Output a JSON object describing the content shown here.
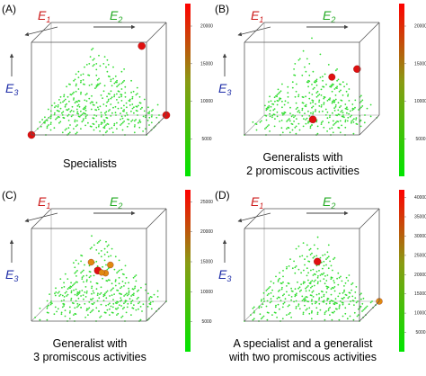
{
  "chart_data": [
    {
      "type": "scatter",
      "panel_label": "(A)",
      "caption_lines": [
        "Specialists"
      ],
      "axis_labels": {
        "e1": "E",
        "e1_sub": "1",
        "e2": "E",
        "e2_sub": "2",
        "e3": "E",
        "e3_sub": "3"
      },
      "colorbar": {
        "ticks": [
          5000,
          10000,
          15000,
          20000
        ],
        "range": [
          0,
          23000
        ],
        "colors": [
          "#00e600",
          "#ff0000"
        ]
      },
      "highlighted_points": [
        {
          "E1": 0.05,
          "E2": 0.95,
          "E3": 0.95,
          "value": 22000
        },
        {
          "E1": 0.0,
          "E2": 0.0,
          "E3": 0.0,
          "value": 22000
        },
        {
          "E1": 1.0,
          "E2": 1.0,
          "E3": 0.0,
          "value": 22000
        }
      ]
    },
    {
      "type": "scatter",
      "panel_label": "(B)",
      "caption_lines": [
        "Generalists with",
        "2 promiscous activities"
      ],
      "axis_labels": {
        "e1": "E",
        "e1_sub": "1",
        "e2": "E",
        "e2_sub": "2",
        "e3": "E",
        "e3_sub": "3"
      },
      "colorbar": {
        "ticks": [
          5000,
          10000,
          15000,
          20000
        ],
        "range": [
          0,
          23000
        ],
        "colors": [
          "#00e600",
          "#ff0000"
        ]
      },
      "highlighted_points": [
        {
          "E1": 0.35,
          "E2": 0.7,
          "E3": 0.55,
          "value": 18000
        },
        {
          "E1": 0.75,
          "E2": 0.85,
          "E3": 0.55,
          "value": 20000
        },
        {
          "E1": 0.55,
          "E2": 0.5,
          "E3": 0.05,
          "value": 22000
        }
      ]
    },
    {
      "type": "scatter",
      "panel_label": "(C)",
      "caption_lines": [
        "Generalist with",
        "3 promiscous activities"
      ],
      "axis_labels": {
        "e1": "E",
        "e1_sub": "1",
        "e2": "E",
        "e2_sub": "2",
        "e3": "E",
        "e3_sub": "3"
      },
      "colorbar": {
        "ticks": [
          5000,
          10000,
          15000,
          20000,
          25000
        ],
        "range": [
          0,
          27000
        ],
        "colors": [
          "#00e600",
          "#ff0000"
        ]
      },
      "highlighted_points": [
        {
          "E1": 0.45,
          "E2": 0.5,
          "E3": 0.45,
          "value": 26000
        },
        {
          "E1": 0.5,
          "E2": 0.6,
          "E3": 0.5,
          "value": 17000
        },
        {
          "E1": 0.4,
          "E2": 0.45,
          "E3": 0.55,
          "value": 16000
        },
        {
          "E1": 0.55,
          "E2": 0.55,
          "E3": 0.4,
          "value": 15000
        },
        {
          "E1": 0.35,
          "E2": 0.55,
          "E3": 0.45,
          "value": 14000
        }
      ]
    },
    {
      "type": "scatter",
      "panel_label": "(D)",
      "caption_lines": [
        "A specialist and a generalist",
        "with two promiscous activities"
      ],
      "axis_labels": {
        "e1": "E",
        "e1_sub": "1",
        "e2": "E",
        "e2_sub": "2",
        "e3": "E",
        "e3_sub": "3"
      },
      "colorbar": {
        "ticks": [
          5000,
          10000,
          15000,
          20000,
          25000,
          30000,
          35000,
          40000
        ],
        "range": [
          0,
          42000
        ],
        "colors": [
          "#00e600",
          "#ff0000"
        ]
      },
      "highlighted_points": [
        {
          "E1": 0.2,
          "E2": 0.6,
          "E3": 0.6,
          "value": 38000
        },
        {
          "E1": 1.0,
          "E2": 1.0,
          "E3": 0.0,
          "value": 25000
        }
      ]
    }
  ]
}
